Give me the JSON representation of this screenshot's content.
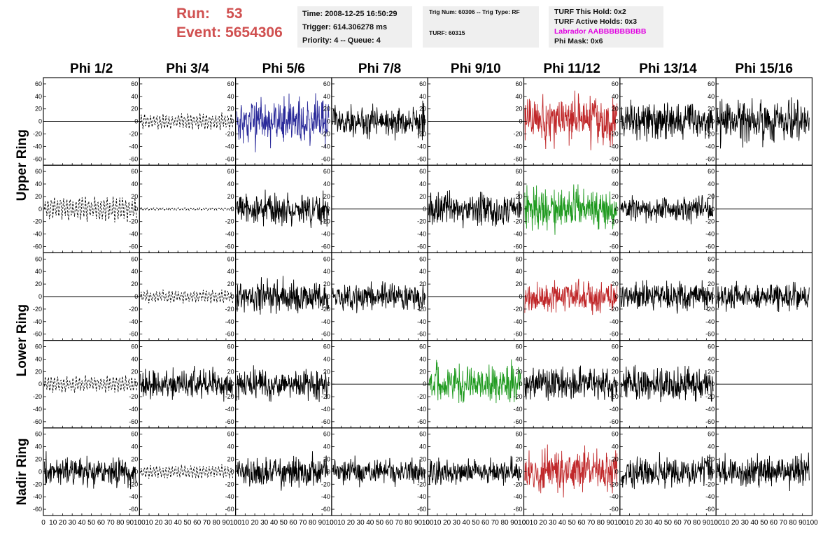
{
  "header": {
    "run_label": "Run:",
    "run_value": "53",
    "event_label": "Event:",
    "event_value": "5654306"
  },
  "info_box_1": {
    "time": "Time: 2008-12-25 16:50:29",
    "trigger": "Trigger: 614.306278 ms",
    "priority": "Priority: 4 -- Queue: 4"
  },
  "info_box_2": {
    "trig": "Trig Num: 60306 -- Trig Type: RF",
    "turf": "TURF: 60315"
  },
  "info_box_3": {
    "turf_hold": "TURF This Hold: 0x2",
    "turf_active": "TURF Active Holds: 0x3",
    "labrador": "Labrador AABBBBBBBBB",
    "phi_mask": "Phi Mask: 0x6"
  },
  "colors": {
    "header_red": "#d05050",
    "labrador_magenta": "#e000e0",
    "trace_black": "#000000",
    "trace_blue": "#2a2a9a",
    "trace_red": "#c0282a",
    "trace_green": "#1f9a1f"
  },
  "chart_data": {
    "type": "line",
    "columns": [
      "Phi 1/2",
      "Phi 3/4",
      "Phi 5/6",
      "Phi 7/8",
      "Phi 9/10",
      "Phi 11/12",
      "Phi 13/14",
      "Phi 15/16"
    ],
    "row_groups": [
      {
        "label": "Upper Ring",
        "rows": 2
      },
      {
        "label": "Lower Ring",
        "rows": 2
      },
      {
        "label": "Nadir Ring",
        "rows": 1
      }
    ],
    "xlim": [
      0,
      100
    ],
    "ylim": [
      -70,
      70
    ],
    "x_ticks": [
      0,
      10,
      20,
      30,
      40,
      50,
      60,
      70,
      80,
      90,
      100
    ],
    "x_tick_labels": [
      "0",
      "10",
      "20",
      "30",
      "40",
      "50",
      "60",
      "70",
      "80",
      "90",
      "100"
    ],
    "y_ticks": [
      -60,
      -40,
      -20,
      0,
      20,
      40,
      60
    ],
    "y_tick_labels": [
      "-60",
      "-40",
      "-20",
      "0",
      "20",
      "40",
      "60"
    ],
    "grid": false,
    "panels": [
      [
        "flat",
        "dashed",
        "blue",
        "black",
        "flat",
        "red",
        "black",
        "black"
      ],
      [
        "dashed",
        "dashed-small",
        "black",
        "flat",
        "black",
        "green",
        "black",
        "flat"
      ],
      [
        "flat",
        "dashed",
        "black",
        "black",
        "flat",
        "red",
        "black",
        "black"
      ],
      [
        "dashed",
        "black",
        "black",
        "flat",
        "green",
        "black",
        "black",
        "flat"
      ],
      [
        "black",
        "dashed",
        "black",
        "black",
        "black",
        "red",
        "black",
        "black"
      ]
    ],
    "amplitudes": [
      [
        0,
        12,
        18,
        12,
        0,
        18,
        14,
        16
      ],
      [
        18,
        2,
        12,
        0,
        12,
        16,
        10,
        0
      ],
      [
        0,
        10,
        12,
        10,
        0,
        12,
        12,
        10
      ],
      [
        12,
        12,
        12,
        0,
        14,
        12,
        12,
        0
      ],
      [
        12,
        10,
        12,
        10,
        10,
        16,
        12,
        12
      ]
    ]
  }
}
